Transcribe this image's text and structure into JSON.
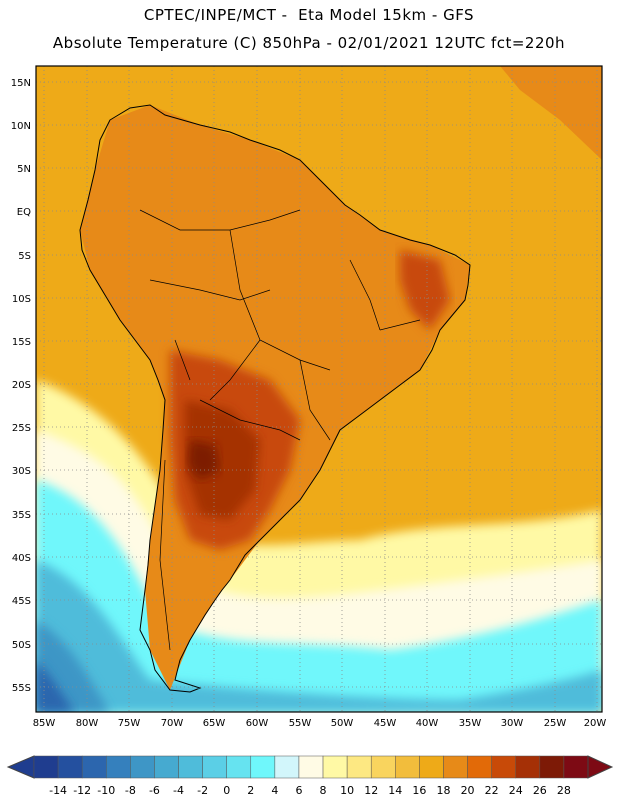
{
  "header": {
    "line1": "CPTEC/INPE/MCT -  Eta Model 15km - GFS",
    "line2": "Absolute Temperature (C) 850hPa - 02/01/2021 12UTC fct=220h"
  },
  "axes": {
    "lat_labels": [
      "15N",
      "10N",
      "5N",
      "EQ",
      "5S",
      "10S",
      "15S",
      "20S",
      "25S",
      "30S",
      "35S",
      "40S",
      "45S",
      "50S",
      "55S"
    ],
    "lon_labels": [
      "85W",
      "80W",
      "75W",
      "70W",
      "65W",
      "60W",
      "55W",
      "50W",
      "45W",
      "40W",
      "35W",
      "30W",
      "25W",
      "20W"
    ]
  },
  "colorbar": {
    "ticks": [
      "-14",
      "-12",
      "-10",
      "-8",
      "-6",
      "-4",
      "-2",
      "0",
      "2",
      "4",
      "6",
      "8",
      "10",
      "12",
      "14",
      "16",
      "18",
      "20",
      "22",
      "24",
      "26",
      "28"
    ],
    "colors": [
      "#1f3d8f",
      "#24509f",
      "#2c66ae",
      "#3580bd",
      "#3e96c6",
      "#46aad0",
      "#4fbcda",
      "#5bcfe6",
      "#66e3f0",
      "#6ff7fb",
      "#d2f6fb",
      "#fffbe5",
      "#fff9a5",
      "#fde882",
      "#f9d45e",
      "#f2bd3c",
      "#eeaa18",
      "#e78a18",
      "#e26a08",
      "#c84a08",
      "#a53006",
      "#7d1a06",
      "#7d0a14"
    ]
  },
  "map_colors": {
    "ocean": "#eeaa18",
    "land_warm": "#e78a18",
    "hot": "#c84a08",
    "very_hot": "#a53006",
    "peak": "#7d1a06",
    "cool": "#fff9a5",
    "pale": "#fffbe5",
    "cold1": "#6ff7fb",
    "cold2": "#4fbcda",
    "cold3": "#3e96c6",
    "cold4": "#2c66ae"
  }
}
